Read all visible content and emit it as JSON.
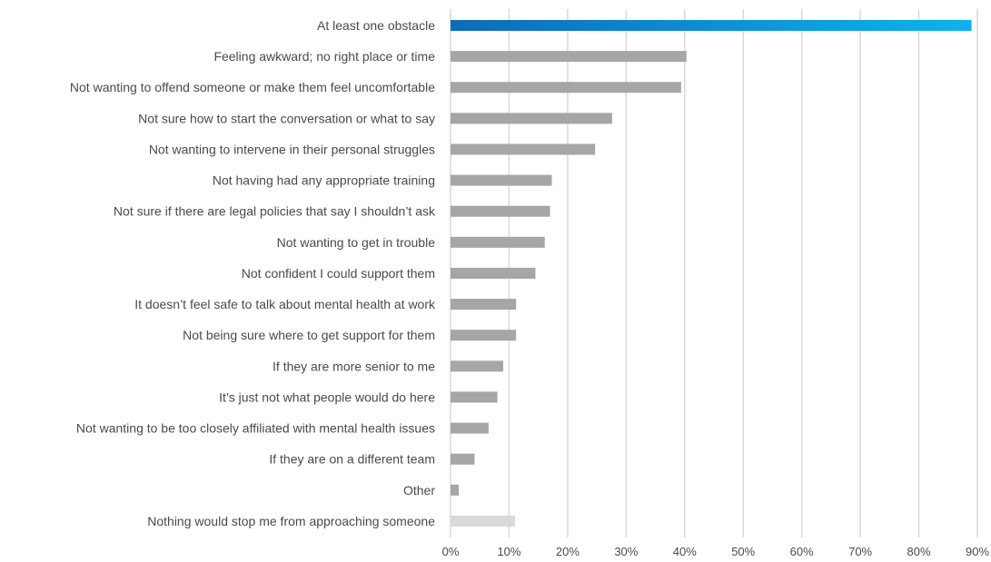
{
  "chart_data": {
    "type": "bar",
    "orientation": "horizontal",
    "categories": [
      "At least one obstacle",
      "Feeling awkward; no right place or time",
      "Not wanting to offend someone or make them feel uncomfortable",
      "Not sure how to start the conversation or what to say",
      "Not wanting to intervene in their personal struggles",
      "Not having had any appropriate training",
      "Not sure if there are legal policies that say I shouldn’t ask",
      "Not wanting to get in trouble",
      "Not confident I could support them",
      "It doesn’t feel safe to talk about mental health at work",
      "Not being sure where to get support for them",
      "If they are more senior to me",
      "It’s just not what people would do here",
      "Not wanting to be too closely affiliated with mental health issues",
      "If they are on a different team",
      "Other",
      "Nothing would stop me from approaching someone"
    ],
    "values": [
      89,
      40.3,
      39.4,
      27.6,
      24.7,
      17.3,
      17,
      16.1,
      14.5,
      11.2,
      11.2,
      9,
      8,
      6.5,
      4.1,
      1.4,
      11
    ],
    "bar_colors": [
      "gradient",
      "#a6a6a6",
      "#a6a6a6",
      "#a6a6a6",
      "#a6a6a6",
      "#a6a6a6",
      "#a6a6a6",
      "#a6a6a6",
      "#a6a6a6",
      "#a6a6a6",
      "#a6a6a6",
      "#a6a6a6",
      "#a6a6a6",
      "#a6a6a6",
      "#a6a6a6",
      "#a6a6a6",
      "#d9d9d9"
    ],
    "highlight_gradient": [
      "#0e6bb8",
      "#0db3ee"
    ],
    "xlim": [
      0,
      90
    ],
    "x_ticks": [
      "0%",
      "10%",
      "20%",
      "30%",
      "40%",
      "50%",
      "60%",
      "70%",
      "80%",
      "90%"
    ],
    "x_tick_values": [
      0,
      10,
      20,
      30,
      40,
      50,
      60,
      70,
      80,
      90
    ],
    "grid": true,
    "title": "",
    "xlabel": "",
    "ylabel": "",
    "legend": "none"
  }
}
